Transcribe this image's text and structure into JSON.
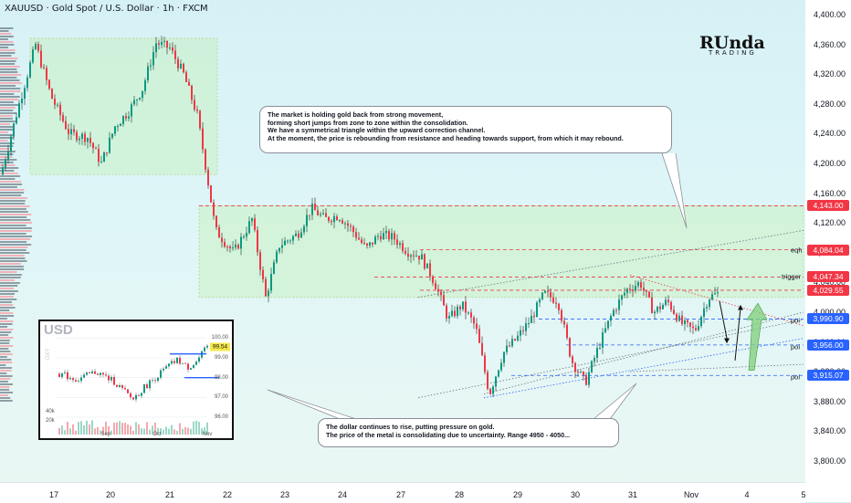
{
  "header": {
    "title": "XAUUSD · Gold Spot / U.S. Dollar · 1h · FXCM"
  },
  "logo": {
    "main": "RUnda",
    "sub": "TRADING"
  },
  "colors": {
    "up": "#089981",
    "down": "#f23645",
    "level_red": "#f23645",
    "level_blue": "#2962ff",
    "zone_green": "#c8f0c4"
  },
  "callouts": {
    "top": [
      "The market is holding gold back from strong movement,",
      "forming short jumps from zone to zone within the consolidation.",
      "We have a symmetrical triangle within the upward correction channel.",
      "At the moment, the price is rebounding from resistance and heading towards support, from which it may rebound."
    ],
    "bottom": [
      "The dollar continues to rise, putting pressure on gold.",
      "The price of the metal is consolidating due to uncertainty. Range 4950 - 4050..."
    ]
  },
  "chart_data": {
    "type": "candlestick",
    "symbol": "XAUUSD",
    "timeframe": "1h",
    "y_range": [
      3770,
      4410
    ],
    "y_ticks": [
      "4,400.00",
      "4,360.00",
      "4,320.00",
      "4,280.00",
      "4,240.00",
      "4,200.00",
      "4,160.00",
      "4,120.00",
      "4,080.00",
      "4,040.00",
      "4,000.00",
      "3,960.00",
      "3,920.00",
      "3,880.00",
      "3,840.00",
      "3,800.00"
    ],
    "x_ticks": [
      "17",
      "20",
      "21",
      "22",
      "23",
      "24",
      "27",
      "28",
      "29",
      "30",
      "31",
      "Nov",
      "4",
      "5"
    ],
    "price_path": [
      [
        0,
        4185
      ],
      [
        20,
        4280
      ],
      [
        38,
        4360
      ],
      [
        55,
        4290
      ],
      [
        75,
        4240
      ],
      [
        95,
        4235
      ],
      [
        110,
        4200
      ],
      [
        125,
        4250
      ],
      [
        140,
        4270
      ],
      [
        155,
        4300
      ],
      [
        170,
        4362
      ],
      [
        185,
        4355
      ],
      [
        200,
        4320
      ],
      [
        215,
        4265
      ],
      [
        225,
        4190
      ],
      [
        235,
        4110
      ],
      [
        255,
        4080
      ],
      [
        275,
        4125
      ],
      [
        290,
        4020
      ],
      [
        305,
        4090
      ],
      [
        325,
        4105
      ],
      [
        340,
        4140
      ],
      [
        355,
        4125
      ],
      [
        370,
        4130
      ],
      [
        385,
        4110
      ],
      [
        400,
        4085
      ],
      [
        415,
        4105
      ],
      [
        430,
        4100
      ],
      [
        445,
        4082
      ],
      [
        460,
        4075
      ],
      [
        475,
        4040
      ],
      [
        490,
        3990
      ],
      [
        505,
        4010
      ],
      [
        520,
        3980
      ],
      [
        535,
        3890
      ],
      [
        550,
        3945
      ],
      [
        565,
        3965
      ],
      [
        580,
        3990
      ],
      [
        595,
        4025
      ],
      [
        610,
        4015
      ],
      [
        625,
        3935
      ],
      [
        640,
        3905
      ],
      [
        655,
        3955
      ],
      [
        670,
        4000
      ],
      [
        685,
        4030
      ],
      [
        700,
        4040
      ],
      [
        715,
        4000
      ],
      [
        730,
        4015
      ],
      [
        745,
        3985
      ],
      [
        760,
        3975
      ],
      [
        775,
        4020
      ],
      [
        785,
        4025
      ]
    ],
    "levels": [
      {
        "price": 4143.0,
        "label": "4,143.00",
        "tag": "",
        "color": "red"
      },
      {
        "price": 4084.04,
        "label": "4,084.04",
        "tag": "eqh",
        "color": "red"
      },
      {
        "price": 4047.34,
        "label": "4,047.34",
        "tag": "trigger",
        "color": "red"
      },
      {
        "price": 4029.55,
        "label": "4,029.55",
        "tag": "",
        "color": "red"
      },
      {
        "price": 3990.9,
        "label": "3,990.90",
        "tag": "poi",
        "color": "blue"
      },
      {
        "price": 3956.0,
        "label": "3,956.00",
        "tag": "poi",
        "color": "blue"
      },
      {
        "price": 3915.07,
        "label": "3,915.07",
        "tag": "poi",
        "color": "blue"
      }
    ],
    "zones": [
      {
        "price_top": 4368,
        "price_bottom": 4185
      },
      {
        "price_top": 4143,
        "price_bottom": 4020
      }
    ]
  },
  "inset": {
    "title": "USD",
    "y_ticks": [
      "100.00",
      "99.00",
      "98.00",
      "97.00",
      "96.00"
    ],
    "x_ticks": [
      "Sep",
      "Oct",
      "Nov"
    ],
    "vol_ticks": [
      "40k",
      "20k"
    ],
    "last": "99.54",
    "watermark": "DXY"
  }
}
